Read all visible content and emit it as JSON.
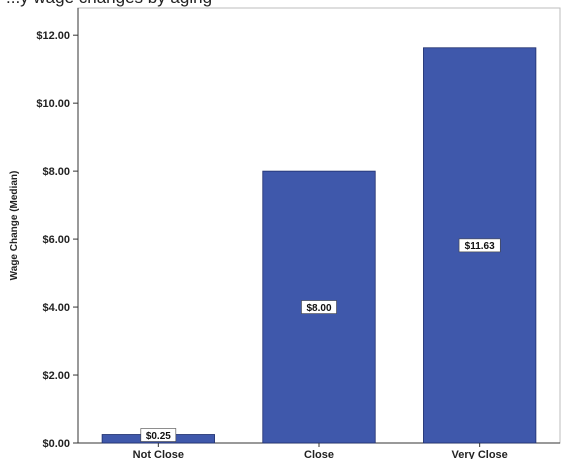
{
  "header_fragment": "...y wage changes by aging",
  "chart_data": {
    "type": "bar",
    "title": "",
    "xlabel": "",
    "ylabel": "Wage Change (Median)",
    "categories": [
      "Not Close",
      "Close",
      "Very Close"
    ],
    "values": [
      0.25,
      8.0,
      11.63
    ],
    "data_labels": [
      "$0.25",
      "$8.00",
      "$11.63"
    ],
    "ylim": [
      0,
      12.8
    ],
    "yticks": [
      0,
      2,
      4,
      6,
      8,
      10,
      12
    ],
    "ytick_labels": [
      "$0.00",
      "$2.00",
      "$4.00",
      "$6.00",
      "$8.00",
      "$10.00",
      "$12.00"
    ],
    "grid": false,
    "bar_color": "#3f58ab",
    "bar_edge_color": "#1f2f6e"
  }
}
